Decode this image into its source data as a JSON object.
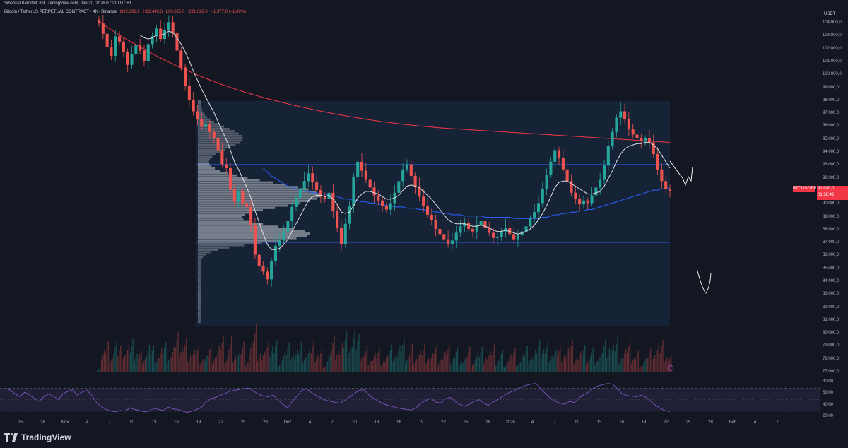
{
  "header": {
    "caption": "Siberius10 erstellt mit TradingView.com, Jan 20, 2026 07:21 UTC+1"
  },
  "symbol": {
    "name": "Bitcoin / TetherUS PERPETUAL CONTRACT · 4h · Binance",
    "open": "O92.396,9",
    "high": "H92.443,3",
    "low": "L90.825,0",
    "close": "C91.020,0",
    "change": "−1.377,0 (−1,49%)"
  },
  "price_axis": {
    "unit": "USDT",
    "ticks": [
      "104.000,0",
      "103.000,0",
      "102.000,0",
      "101.000,0",
      "100.000,0",
      "99.000,0",
      "98.000,0",
      "97.000,0",
      "96.000,0",
      "95.000,0",
      "94.000,0",
      "93.000,0",
      "92.000,0",
      "91.000,0",
      "90.000,0",
      "89.000,0",
      "88.000,0",
      "87.000,0",
      "86.000,0",
      "85.000,0",
      "84.000,0",
      "83.000,0",
      "82.000,0",
      "81.000,0",
      "80.000,0",
      "79.000,0",
      "78.000,0",
      "77.000,0"
    ]
  },
  "last_price": {
    "symbol": "BTCUSDT.P",
    "price": "91.020,0",
    "countdown": "01:38:42"
  },
  "rsi_axis": {
    "ticks": [
      "80,00",
      "60,00",
      "40,00",
      "20,00"
    ]
  },
  "time_axis": {
    "ticks": [
      "25",
      "28",
      "Nov",
      "4",
      "7",
      "10",
      "13",
      "16",
      "19",
      "22",
      "25",
      "28",
      "Dez",
      "4",
      "7",
      "10",
      "13",
      "16",
      "19",
      "22",
      "25",
      "28",
      "2026",
      "4",
      "7",
      "10",
      "13",
      "16",
      "19",
      "22",
      "25",
      "28",
      "Feb",
      "4",
      "7"
    ]
  },
  "branding": {
    "logo_text": "TradingView"
  },
  "colors": {
    "background": "#131722",
    "up": "#26a69a",
    "down": "#ef5350",
    "ema_short": "#e0e0e0",
    "ema_mid": "#2962ff",
    "ema_long": "#f23645",
    "rsi": "#7e57c2"
  },
  "chart_data": {
    "type": "candlestick",
    "title": "Bitcoin / TetherUS PERPETUAL CONTRACT · 4h · Binance",
    "ylim": [
      77000,
      104500
    ],
    "closes": [
      104000,
      103200,
      102200,
      101500,
      103000,
      102600,
      101800,
      100800,
      101600,
      102300,
      101900,
      101100,
      102400,
      103000,
      103600,
      102800,
      103500,
      104100,
      103300,
      101900,
      100600,
      99200,
      98100,
      97200,
      96600,
      96000,
      96200,
      95600,
      95100,
      94200,
      93100,
      92800,
      91200,
      90200,
      91000,
      90100,
      89800,
      88400,
      86100,
      85200,
      84800,
      84200,
      85600,
      86800,
      87200,
      87900,
      88700,
      89800,
      90500,
      91200,
      91800,
      92400,
      91700,
      91100,
      90600,
      90400,
      90900,
      89500,
      88200,
      86900,
      88500,
      89900,
      92100,
      93300,
      92600,
      91900,
      91300,
      90700,
      90300,
      89900,
      89600,
      90100,
      90900,
      91800,
      92700,
      93100,
      92200,
      91400,
      90600,
      89900,
      89200,
      88800,
      88100,
      87700,
      87300,
      86900,
      87200,
      87800,
      88300,
      88600,
      88100,
      87900,
      88400,
      88700,
      88200,
      87800,
      87400,
      87500,
      87900,
      88200,
      87700,
      87300,
      87600,
      87900,
      88300,
      88900,
      89400,
      90100,
      91200,
      92300,
      93300,
      94200,
      93600,
      92700,
      91800,
      90900,
      90400,
      90000,
      90300,
      90100,
      90700,
      91300,
      91900,
      93000,
      94500,
      95600,
      96700,
      97200,
      96600,
      95800,
      95400,
      95100,
      94900,
      95100,
      94800,
      93900,
      92700,
      91800,
      91200,
      91020
    ],
    "ema_short": [
      null,
      null,
      null,
      null,
      null,
      null,
      null,
      null,
      null,
      null,
      103100,
      102900,
      102800,
      102900,
      103100,
      103100,
      103200,
      103400,
      103300,
      102900,
      102400,
      101800,
      101100,
      100300,
      99600,
      98900,
      98300,
      97700,
      97100,
      96400,
      95700,
      95000,
      94200,
      93300,
      92700,
      92000,
      91300,
      90500,
      89500,
      88600,
      87700,
      86900,
      86500,
      86500,
      86600,
      86900,
      87300,
      87900,
      88500,
      89100,
      89700,
      90300,
      90600,
      90700,
      90700,
      90600,
      90700,
      90400,
      90000,
      89400,
      89300,
      89400,
      89900,
      90500,
      90800,
      91000,
      91000,
      90900,
      90800,
      90600,
      90400,
      90400,
      90500,
      90700,
      91100,
      91400,
      91500,
      91400,
      91300,
      91000,
      90700,
      90400,
      90000,
      89600,
      89200,
      88800,
      88600,
      88500,
      88500,
      88500,
      88400,
      88300,
      88300,
      88400,
      88300,
      88200,
      88000,
      87900,
      87900,
      88000,
      87900,
      87800,
      87700,
      87800,
      87900,
      88100,
      88400,
      88800,
      89300,
      89900,
      90600,
      91300,
      91700,
      91800,
      91800,
      91600,
      91400,
      91200,
      91000,
      90800,
      90800,
      90900,
      91000,
      91400,
      92000,
      92600,
      93300,
      93900,
      94300,
      94500,
      94600,
      94700,
      94700,
      94800,
      94800,
      94600,
      94300,
      93800,
      93300,
      92800
    ],
    "ema_mid": [
      null,
      null,
      null,
      null,
      null,
      null,
      null,
      null,
      null,
      null,
      null,
      null,
      null,
      null,
      null,
      null,
      null,
      null,
      null,
      null,
      null,
      null,
      null,
      null,
      null,
      null,
      null,
      null,
      null,
      null,
      null,
      null,
      null,
      null,
      null,
      null,
      null,
      null,
      null,
      null,
      92800,
      92500,
      92200,
      92000,
      91800,
      91600,
      91400,
      91300,
      91200,
      91100,
      91000,
      91000,
      90900,
      90900,
      90800,
      90800,
      90700,
      90700,
      90600,
      90500,
      90400,
      90400,
      90300,
      90300,
      90200,
      90200,
      90100,
      90100,
      90000,
      90000,
      89900,
      89900,
      89800,
      89800,
      89800,
      89700,
      89700,
      89700,
      89600,
      89600,
      89500,
      89500,
      89400,
      89400,
      89300,
      89300,
      89200,
      89200,
      89200,
      89100,
      89100,
      89100,
      89100,
      89100,
      89000,
      89000,
      89000,
      89000,
      89000,
      89000,
      89000,
      88900,
      88900,
      88900,
      88900,
      88900,
      88900,
      88900,
      89000,
      89000,
      89100,
      89200,
      89200,
      89300,
      89300,
      89400,
      89400,
      89500,
      89500,
      89600,
      89600,
      89700,
      89800,
      89900,
      90000,
      90100,
      90200,
      90300,
      90400,
      90500,
      90600,
      90700,
      90800,
      90900,
      91000,
      91100,
      91100,
      91200,
      91200,
      91300
    ],
    "ema_long": [
      104200,
      103950,
      103720,
      103500,
      103300,
      103100,
      102900,
      102720,
      102540,
      102360,
      102180,
      102000,
      101830,
      101660,
      101490,
      101330,
      101170,
      101010,
      100860,
      100710,
      100560,
      100420,
      100280,
      100140,
      100010,
      99880,
      99750,
      99630,
      99510,
      99390,
      99270,
      99160,
      99050,
      98940,
      98840,
      98740,
      98640,
      98540,
      98450,
      98360,
      98270,
      98180,
      98100,
      98020,
      97940,
      97860,
      97780,
      97700,
      97630,
      97560,
      97490,
      97420,
      97350,
      97280,
      97210,
      97150,
      97090,
      97030,
      96970,
      96910,
      96850,
      96790,
      96740,
      96690,
      96640,
      96590,
      96540,
      96490,
      96440,
      96400,
      96360,
      96320,
      96280,
      96240,
      96200,
      96160,
      96130,
      96100,
      96070,
      96040,
      96010,
      95980,
      95950,
      95920,
      95900,
      95880,
      95860,
      95840,
      95820,
      95800,
      95780,
      95760,
      95740,
      95720,
      95700,
      95680,
      95660,
      95640,
      95620,
      95600,
      95580,
      95560,
      95540,
      95520,
      95500,
      95480,
      95460,
      95440,
      95420,
      95400,
      95380,
      95360,
      95340,
      95320,
      95300,
      95280,
      95260,
      95240,
      95220,
      95200,
      95180,
      95160,
      95140,
      95120,
      95100,
      95080,
      95060,
      95040,
      95020,
      95000,
      94980,
      94960,
      94940,
      94920,
      94900,
      94880,
      94860,
      94840,
      94820,
      94800
    ],
    "rsi": {
      "ylim": [
        20,
        85
      ],
      "bands": [
        70,
        30
      ],
      "values": [
        70,
        66,
        60,
        55,
        63,
        58,
        52,
        47,
        55,
        60,
        56,
        50,
        60,
        64,
        67,
        58,
        63,
        66,
        58,
        45,
        38,
        33,
        30,
        29,
        31,
        30,
        36,
        33,
        31,
        29,
        30,
        35,
        33,
        31,
        37,
        34,
        33,
        30,
        28,
        30,
        33,
        37,
        46,
        52,
        54,
        58,
        61,
        65,
        66,
        68,
        69,
        70,
        64,
        59,
        56,
        55,
        58,
        49,
        42,
        36,
        47,
        56,
        66,
        69,
        62,
        57,
        53,
        49,
        47,
        45,
        44,
        49,
        55,
        61,
        66,
        67,
        58,
        52,
        47,
        43,
        40,
        38,
        36,
        34,
        33,
        32,
        37,
        44,
        49,
        52,
        46,
        44,
        51,
        54,
        47,
        42,
        38,
        42,
        47,
        50,
        44,
        40,
        46,
        50,
        55,
        61,
        64,
        68,
        72,
        75,
        77,
        78,
        69,
        60,
        53,
        47,
        44,
        42,
        47,
        45,
        53,
        59,
        63,
        70,
        74,
        76,
        78,
        77,
        69,
        60,
        57,
        56,
        55,
        58,
        54,
        47,
        40,
        35,
        31,
        29
      ]
    }
  }
}
